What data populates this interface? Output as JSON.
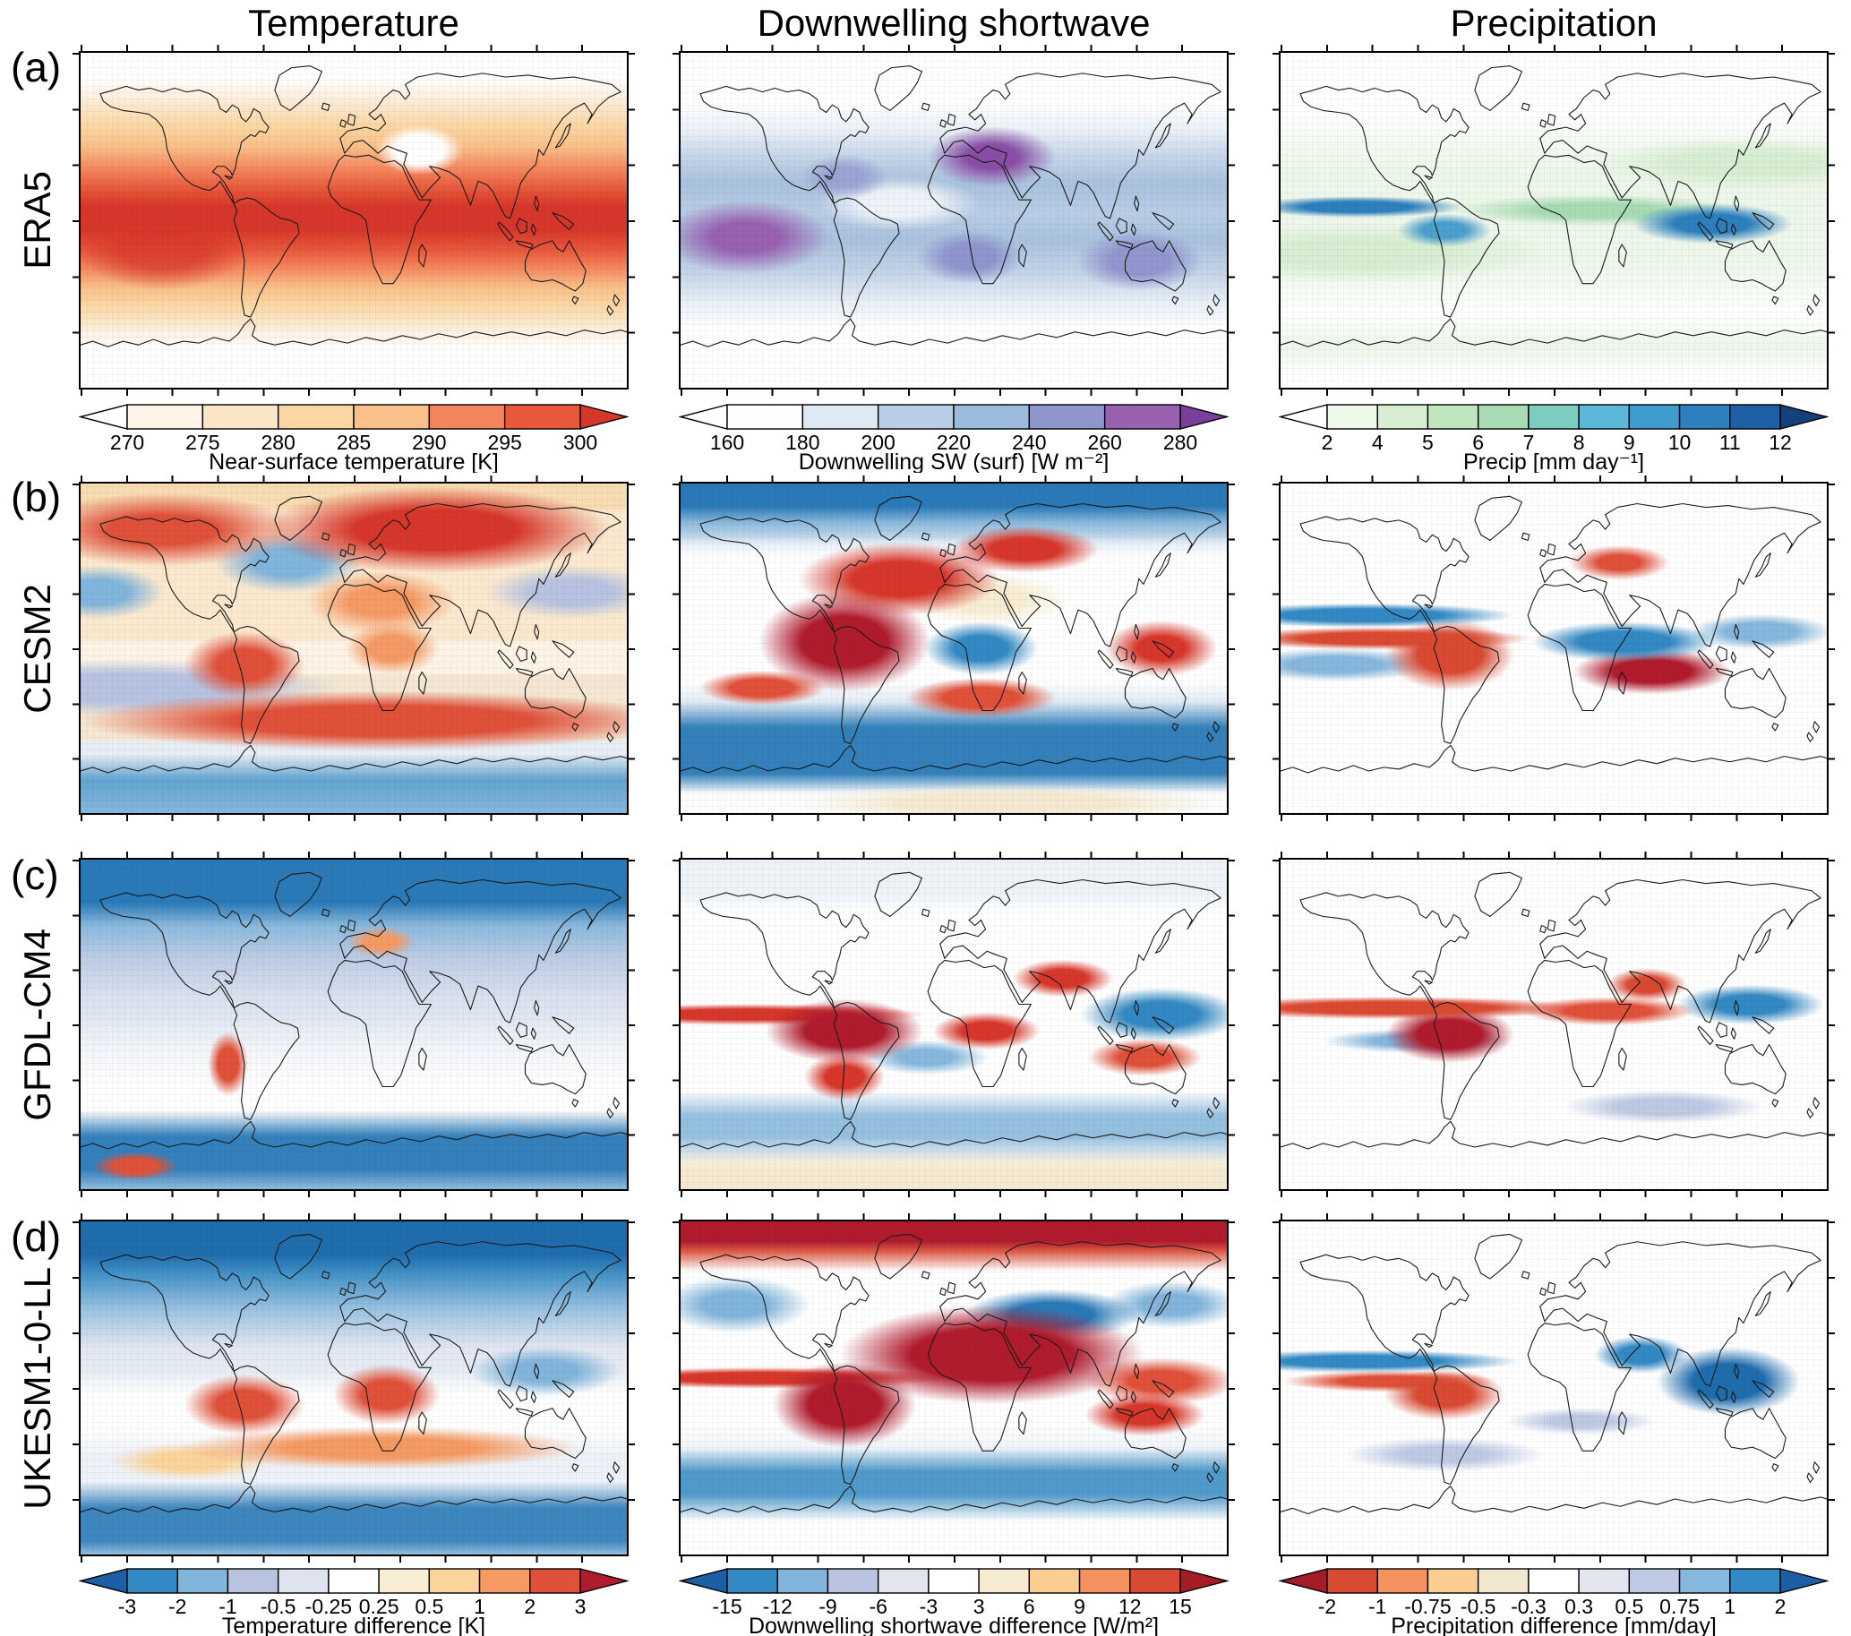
{
  "figure": {
    "columns": [
      {
        "title": "Temperature"
      },
      {
        "title": "Downwelling shortwave"
      },
      {
        "title": "Precipitation"
      }
    ],
    "rows": [
      {
        "letter": "(a)",
        "model": "ERA5"
      },
      {
        "letter": "(b)",
        "model": "CESM2"
      },
      {
        "letter": "(c)",
        "model": "GFDL-CM4"
      },
      {
        "letter": "(d)",
        "model": "UKESM1-0-LL"
      }
    ]
  },
  "chart_data": {
    "type": "heatmap",
    "layout": "4x3 grid of global maps (equirectangular projection with coastlines); row (a) shows ERA5 climatological fields, rows (b)-(d) show model-minus-ERA5 difference fields; colorbars under row (a) apply to row (a), colorbars at the bottom apply to rows (b)-(d)",
    "rows": [
      "ERA5",
      "CESM2",
      "GFDL-CM4",
      "UKESM1-0-LL"
    ],
    "row_panel_labels": [
      "(a)",
      "(b)",
      "(c)",
      "(d)"
    ],
    "columns": [
      "Temperature",
      "Downwelling shortwave",
      "Precipitation"
    ],
    "grid": {
      "lon_tick_interval_deg": 30,
      "lat_tick_interval_deg": 30
    },
    "colorbars": [
      {
        "applies_to": "row a, Temperature",
        "label": "Near-surface temperature [K]",
        "ticks": [
          270,
          275,
          280,
          285,
          290,
          295,
          300
        ],
        "segment_colors": [
          "#fdf3e7",
          "#fbe5c6",
          "#fbd6a2",
          "#f9c089",
          "#f4845c",
          "#e8593c"
        ],
        "under_color": "#ffffff",
        "over_color": "#d7372a"
      },
      {
        "applies_to": "row a, Downwelling shortwave",
        "label": "Downwelling SW (surf) [W m⁻²]",
        "ticks": [
          160,
          180,
          200,
          220,
          240,
          260,
          280
        ],
        "segment_colors": [
          "#fdfeff",
          "#dfe9f4",
          "#b9cde6",
          "#9dbcdd",
          "#8f96cd",
          "#9862b1"
        ],
        "under_color": "#ffffff",
        "over_color": "#7a3e9d"
      },
      {
        "applies_to": "row a, Precipitation",
        "label": "Precip [mm day⁻¹]",
        "ticks": [
          2,
          4,
          5,
          6,
          7,
          8,
          9,
          10,
          11,
          12
        ],
        "segment_colors": [
          "#edf7ea",
          "#d8eed3",
          "#c1e5bd",
          "#a8dbb4",
          "#7fcdc1",
          "#5bb8d8",
          "#3f9ccd",
          "#2d7fbe",
          "#1f5fa6"
        ],
        "under_color": "#ffffff",
        "over_color": "#14407c"
      },
      {
        "applies_to": "rows b-d, Temperature difference",
        "label": "Temperature difference [K]",
        "ticks": [
          -3,
          -2,
          -1,
          -0.5,
          -0.25,
          0.25,
          0.5,
          1,
          2,
          3
        ],
        "segment_colors": [
          "#3389c3",
          "#82b5db",
          "#b7c3e1",
          "#dfe2ef",
          "#ffffff",
          "#f8ecd2",
          "#fbd49c",
          "#f59a63",
          "#e0513a"
        ],
        "under_color": "#1c5fa5",
        "over_color": "#b01c2e"
      },
      {
        "applies_to": "rows b-d, Downwelling shortwave difference",
        "label": "Downwelling shortwave difference [W/m²]",
        "ticks": [
          -15,
          -12,
          -9,
          -6,
          -3,
          3,
          6,
          9,
          12,
          15
        ],
        "segment_colors": [
          "#3389c3",
          "#82b5db",
          "#b9c4e2",
          "#e2e4ee",
          "#ffffff",
          "#f6ead0",
          "#fbcd90",
          "#f4935f",
          "#da4a33"
        ],
        "under_color": "#1c5fa5",
        "over_color": "#a31c28"
      },
      {
        "applies_to": "rows b-d, Precipitation difference",
        "label": "Precipitation difference [mm/day]",
        "ticks": [
          -2,
          -1,
          -0.75,
          -0.5,
          -0.3,
          0.3,
          0.5,
          0.75,
          1,
          2
        ],
        "segment_colors": [
          "#da4a33",
          "#f4935f",
          "#fbcd90",
          "#f2e8cf",
          "#ffffff",
          "#e4e6ef",
          "#bec9e4",
          "#86b7dc",
          "#3389c3"
        ],
        "under_color": "#a31c28",
        "over_color": "#1c5fa5"
      }
    ],
    "panels": [
      {
        "row": "ERA5",
        "column": "Temperature",
        "pattern": "zonal bands: white at poles grading to dark red (>300 K) in the tropics; pale patch over Tibetan Plateau and Andes"
      },
      {
        "row": "ERA5",
        "column": "Downwelling shortwave",
        "pattern": "white at high latitudes, blue mid-latitude bands, purple maxima (>260 W m-2) over Sahara, subtropical oceans and Australia"
      },
      {
        "row": "ERA5",
        "column": "Precipitation",
        "pattern": "mostly pale green with dark blue ITCZ band near the equator over the Pacific, Amazon and Maritime Continent"
      },
      {
        "row": "CESM2",
        "column": "Temperature",
        "pattern": "warm bias (orange/red) over most NH land and southern mid-latitude ocean band; cold patches in N Atlantic, N Pacific and around Antarctica"
      },
      {
        "row": "CESM2",
        "column": "Downwelling shortwave",
        "pattern": "strong negative bias (dark blue) over Arctic and Southern Ocean; strong positive bias (dark red) over Amazon, tropical Atlantic and Siberia"
      },
      {
        "row": "CESM2",
        "column": "Precipitation",
        "pattern": "mostly near zero; wet/dry dipoles along the tropical Pacific, dry (red) Amazon and southern Indian Ocean, wet (blue) equatorial Indian Ocean"
      },
      {
        "row": "GFDL-CM4",
        "column": "Temperature",
        "pattern": "cold bias (blue) over NH high latitudes and Southern Ocean ring; near-zero to slightly warm in southern mid-latitudes; small warm spots along Andes and Antarctic coast"
      },
      {
        "row": "GFDL-CM4",
        "column": "Downwelling shortwave",
        "pattern": "positive bias (red) band along tropical east Pacific, Amazon, east Africa, China and Australia; negative (blue) over Maritime Continent and Southern Ocean band"
      },
      {
        "row": "GFDL-CM4",
        "column": "Precipitation",
        "pattern": "dry (red) band north of the equator across the Pacific and over the Amazon; wet (blue) patches over west Pacific, SE Asia and south of the equator"
      },
      {
        "row": "UKESM1-0-LL",
        "column": "Temperature",
        "pattern": "cold bias (dark blue) over the Arctic and NH continents; warm patches over tropical South America, southern Africa and the southern mid-latitude band; cold ring around Antarctica"
      },
      {
        "row": "UKESM1-0-LL",
        "column": "Downwelling shortwave",
        "pattern": "strong positive bias (dark red) over the Arctic band, Africa/Arabia/India, South America and subtropical oceans; negative (blue) over central Asia and Southern Ocean band"
      },
      {
        "row": "UKESM1-0-LL",
        "column": "Precipitation",
        "pattern": "wet (blue) band north of the equator and over the Maritime Continent and Indian Ocean; dry (red) over Amazon and equatorial Atlantic"
      }
    ]
  }
}
